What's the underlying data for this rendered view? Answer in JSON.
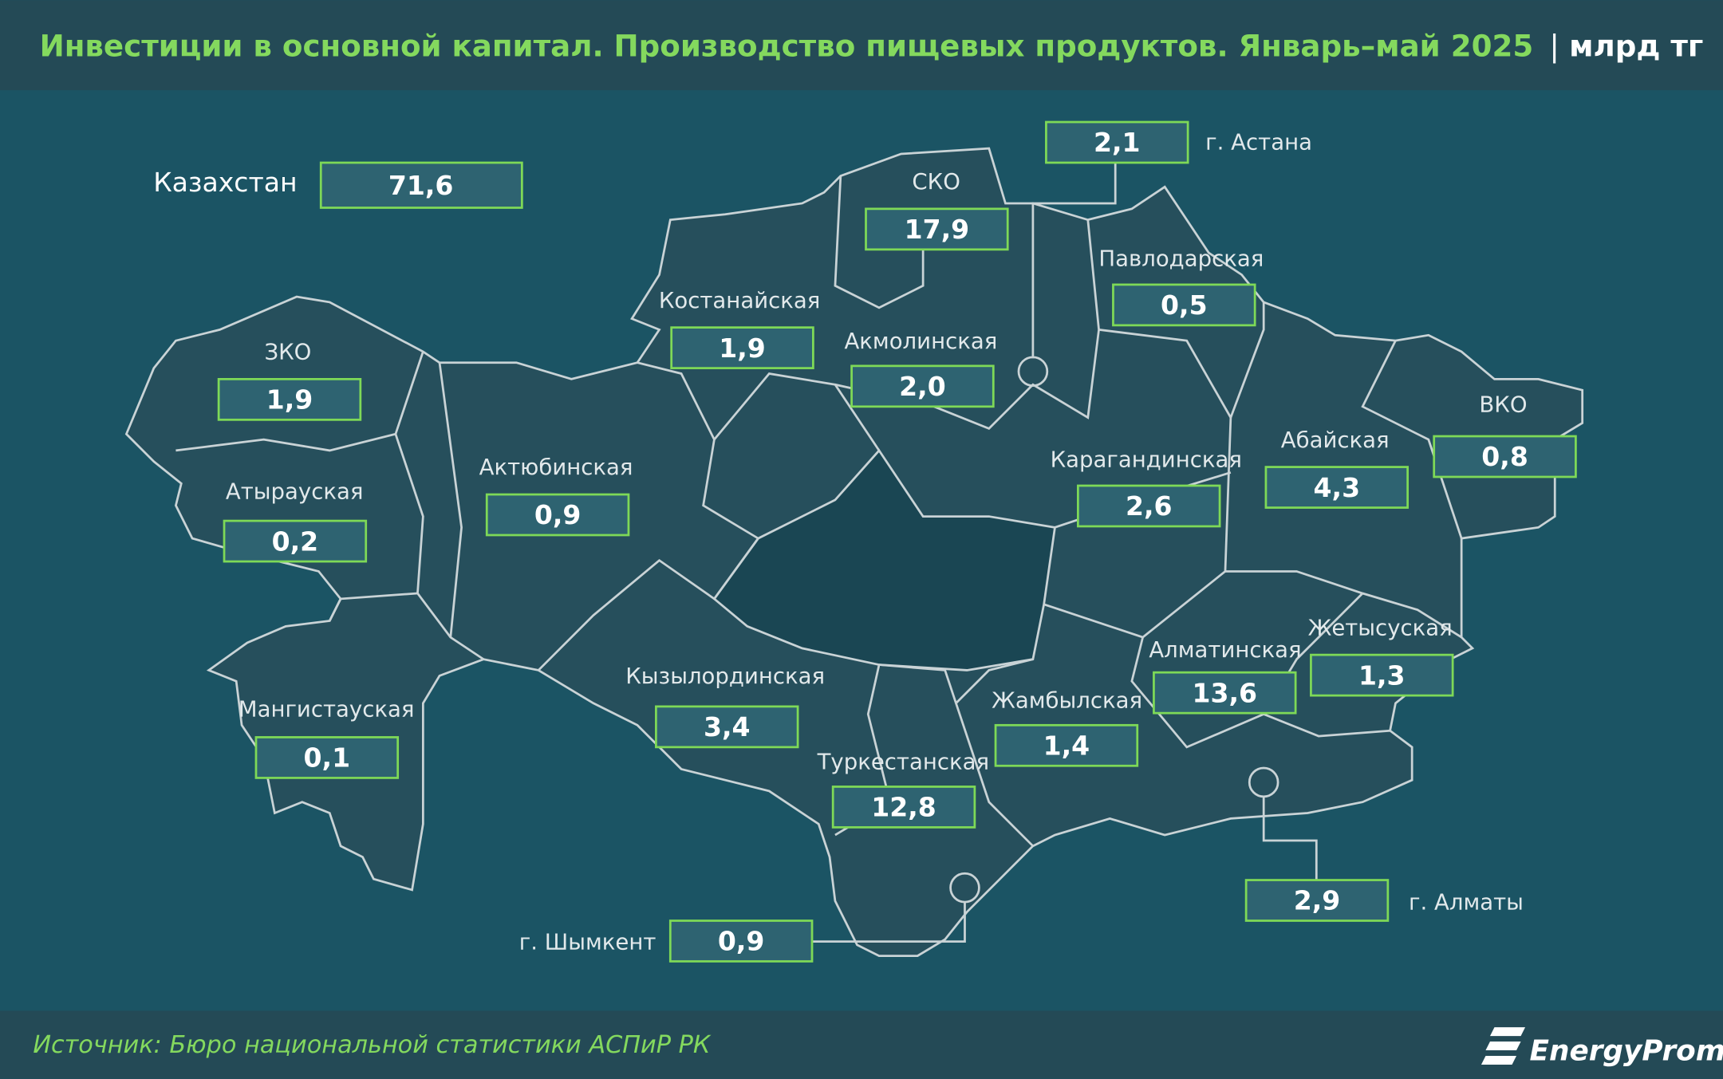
{
  "header": {
    "title": "Инвестиции в основной капитал. Производство пищевых продуктов. Январь–май 2025",
    "unit": "млрд тг"
  },
  "total": {
    "label": "Казахстан",
    "value": "71,6"
  },
  "regions": [
    {
      "name": "СКО",
      "value": "17,9"
    },
    {
      "name": "Павлодарская",
      "value": "0,5"
    },
    {
      "name": "Костанайская",
      "value": "1,9"
    },
    {
      "name": "Акмолинская",
      "value": "2,0"
    },
    {
      "name": "ЗКО",
      "value": "1,9"
    },
    {
      "name": "ВКО",
      "value": "0,8"
    },
    {
      "name": "Абайская",
      "value": "4,3"
    },
    {
      "name": "Карагандинская",
      "value": "2,6"
    },
    {
      "name": "Актюбинская",
      "value": "0,9"
    },
    {
      "name": "Атырауская",
      "value": "0,2"
    },
    {
      "name": "Жетысуская",
      "value": "1,3"
    },
    {
      "name": "Алматинская",
      "value": "13,6"
    },
    {
      "name": "Кызылординская",
      "value": "3,4"
    },
    {
      "name": "Жамбылская",
      "value": "1,4"
    },
    {
      "name": "Мангистауская",
      "value": "0,1"
    },
    {
      "name": "Туркестанская",
      "value": "12,8"
    }
  ],
  "cities": [
    {
      "name": "г. Астана",
      "value": "2,1"
    },
    {
      "name": "г. Алматы",
      "value": "2,9"
    },
    {
      "name": "г. Шымкент",
      "value": "0,9"
    }
  ],
  "footer": {
    "source": "Источник: Бюро национальной статистики АСПиР РК",
    "logo": "EnergyProm"
  }
}
